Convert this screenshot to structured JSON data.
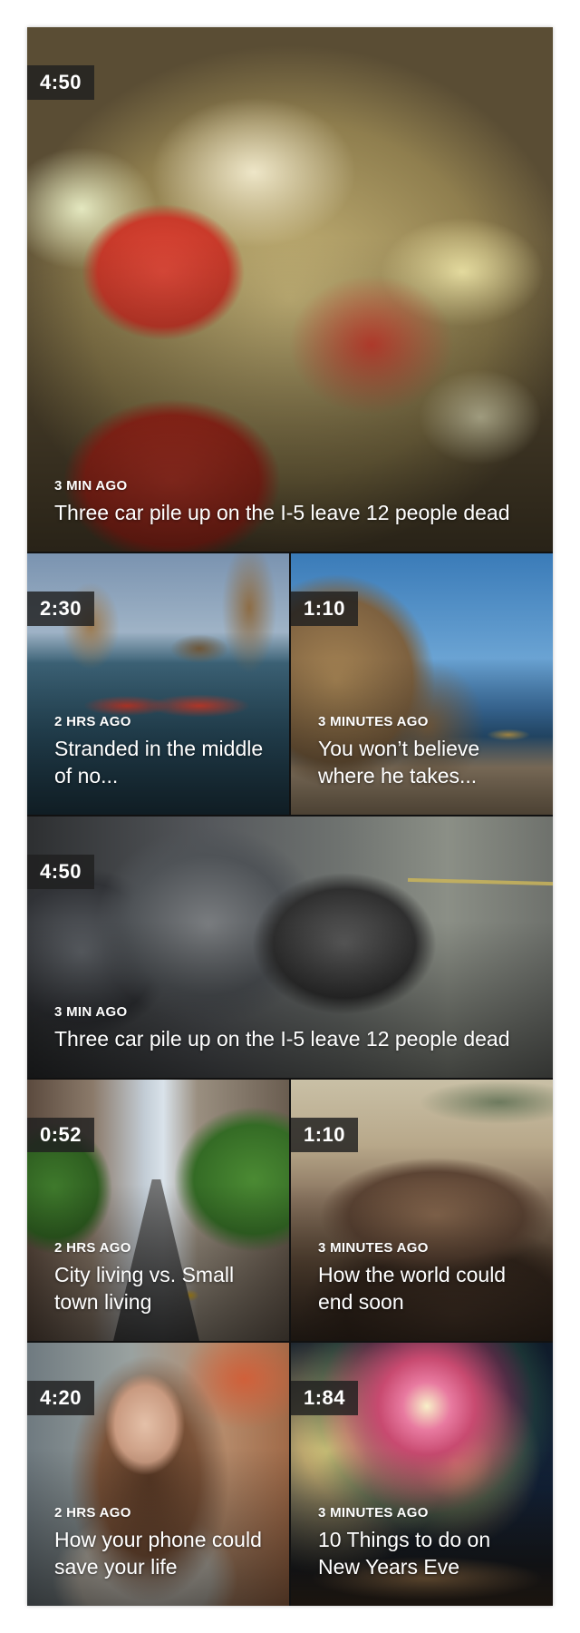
{
  "feed": {
    "cards": [
      {
        "duration": "4:50",
        "time_ago": "3 MIN AGO",
        "headline": "Three car pile up on the I-5 leave 12 people dead",
        "thumbnail_icon": "salad-image"
      },
      {
        "duration": "2:30",
        "time_ago": "2 HRS AGO",
        "headline": "Stranded in the middle of no...",
        "thumbnail_icon": "boats-sea-image"
      },
      {
        "duration": "1:10",
        "time_ago": "3 MINUTES AGO",
        "headline": "You won’t believe where he takes...",
        "thumbnail_icon": "cliff-beach-image"
      },
      {
        "duration": "4:50",
        "time_ago": "3 MIN AGO",
        "headline": "Three car pile up on the I-5 leave 12 people dead",
        "thumbnail_icon": "crashed-car-image"
      },
      {
        "duration": "0:52",
        "time_ago": "2 HRS AGO",
        "headline": "City living vs. Small town living",
        "thumbnail_icon": "city-street-image"
      },
      {
        "duration": "1:10",
        "time_ago": "3 MINUTES AGO",
        "headline": "How the world could end soon",
        "thumbnail_icon": "volcano-image"
      },
      {
        "duration": "4:20",
        "time_ago": "2 HRS AGO",
        "headline": "How your phone could save your life",
        "thumbnail_icon": "woman-phone-image"
      },
      {
        "duration": "1:84",
        "time_ago": "3 MINUTES AGO",
        "headline": "10 Things to do on New Years Eve",
        "thumbnail_icon": "fireworks-image"
      }
    ]
  },
  "colors": {
    "badge_background": "#202020",
    "text": "#ffffff"
  }
}
